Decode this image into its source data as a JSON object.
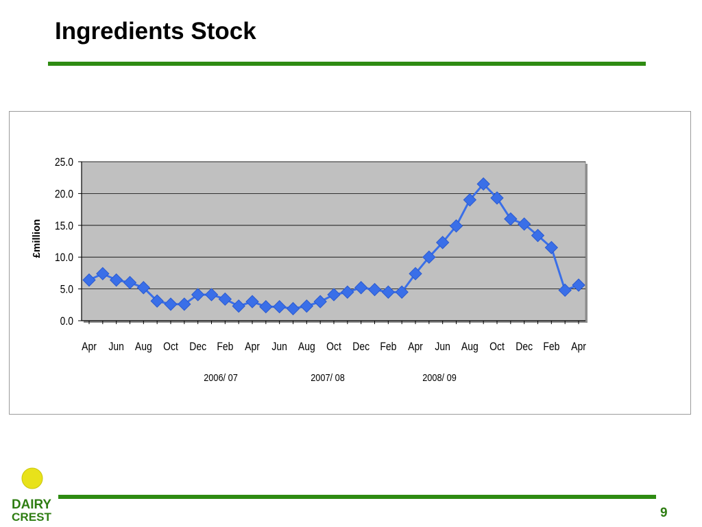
{
  "title": "Ingredients Stock",
  "page_number": "9",
  "colors": {
    "accent_green": "#2e8b12",
    "series": "#3a6fe8",
    "plot_bg": "#c0c0c0"
  },
  "logo": {
    "line1": "DAIRY",
    "line2": "CREST",
    "icon": "sun-icon"
  },
  "chart_data": {
    "type": "line",
    "ylabel": "£million",
    "ylim": [
      0,
      25
    ],
    "yticks": [
      "0.0",
      "5.0",
      "10.0",
      "15.0",
      "20.0",
      "25.0"
    ],
    "grid": true,
    "x_tick_labels": [
      "Apr",
      "Jun",
      "Aug",
      "Oct",
      "Dec",
      "Feb",
      "Apr",
      "Jun",
      "Aug",
      "Oct",
      "Dec",
      "Feb",
      "Apr",
      "Jun",
      "Aug",
      "Oct",
      "Dec",
      "Feb",
      "Apr"
    ],
    "year_labels": [
      "2006/ 07",
      "2007/ 08",
      "2008/ 09"
    ],
    "series": [
      {
        "values": [
          6.4,
          7.4,
          6.4,
          6.0,
          5.2,
          3.1,
          2.6,
          2.6,
          4.1,
          4.1,
          3.4,
          2.3,
          3.0,
          2.2,
          2.2,
          1.9,
          2.3,
          3.0,
          4.1,
          4.5,
          5.2,
          4.9,
          4.5,
          4.5,
          7.4,
          10.0,
          12.3,
          14.9,
          19.0,
          21.5,
          19.3,
          16.0,
          15.2,
          13.4,
          11.5,
          4.8,
          5.6
        ]
      }
    ]
  }
}
